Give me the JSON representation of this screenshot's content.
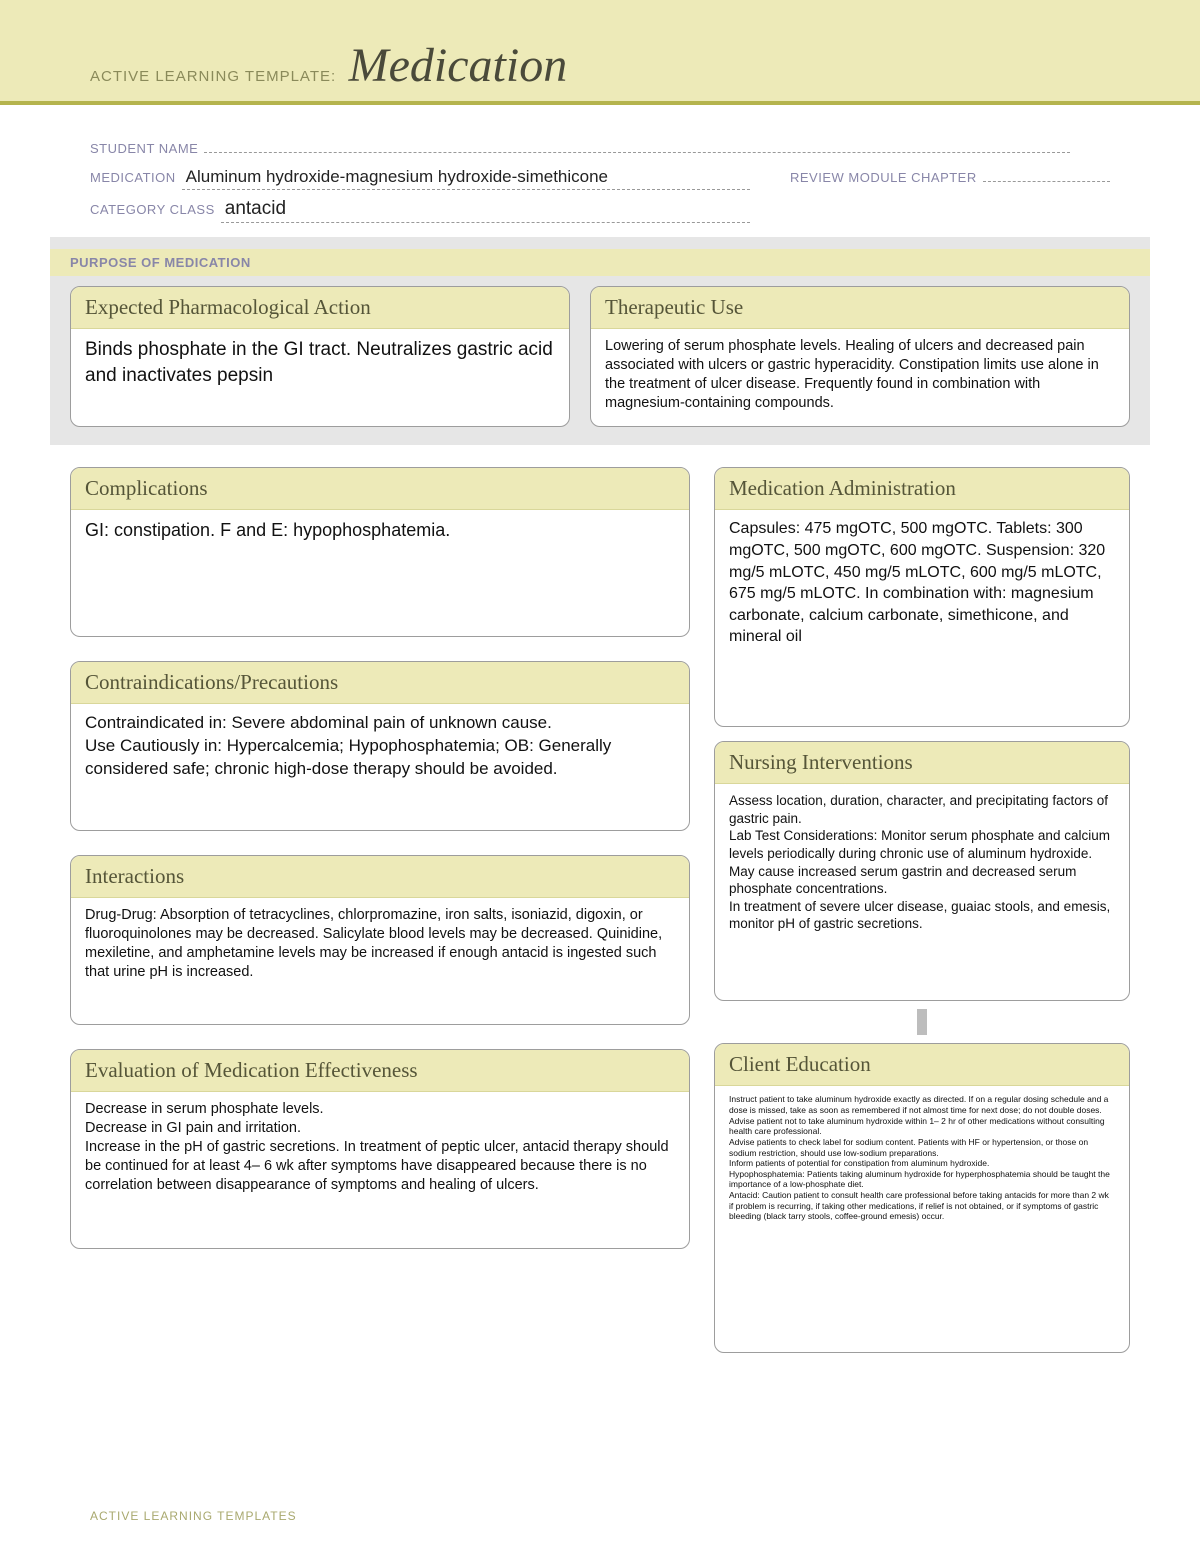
{
  "banner": {
    "label": "ACTIVE LEARNING TEMPLATE:",
    "title": "Medication"
  },
  "meta": {
    "student_name_label": "STUDENT NAME",
    "student_name": "",
    "medication_label": "MEDICATION",
    "medication": "Aluminum hydroxide-magnesium hydroxide-simethicone",
    "review_label": "REVIEW MODULE CHAPTER",
    "review": "",
    "category_label": "CATEGORY CLASS",
    "category": "antacid"
  },
  "purpose": {
    "heading": "PURPOSE OF MEDICATION",
    "pharm": {
      "title": "Expected Pharmacological Action",
      "body": "Binds phosphate in the GI tract. Neutralizes gastric acid and inactivates pepsin"
    },
    "therapeutic": {
      "title": "Therapeutic Use",
      "body": "Lowering of serum phosphate levels. Healing of ulcers and decreased pain associated with ulcers or gastric hyperacidity. Constipation limits use alone in the treatment of ulcer disease. Frequently found in combination with magnesium-containing compounds."
    }
  },
  "left": {
    "complications": {
      "title": "Complications",
      "body": "GI: constipation. F and E: hypophosphatemia."
    },
    "contra": {
      "title": "Contraindications/Precautions",
      "body": "Contraindicated in: Severe abdominal pain of unknown cause.\nUse Cautiously in: Hypercalcemia; Hypophosphatemia; OB: Generally considered safe; chronic high-dose therapy should be avoided."
    },
    "interactions": {
      "title": "Interactions",
      "body": "Drug-Drug: Absorption of tetracyclines, chlorpromazine, iron salts, isoniazid, digoxin, or fluoroquinolones may be decreased. Salicylate blood levels may be decreased. Quinidine, mexiletine, and amphetamine levels may be increased if enough antacid is ingested such that urine pH is increased."
    },
    "evaluation": {
      "title": "Evaluation of Medication Effectiveness",
      "body": "Decrease in serum phosphate levels.\nDecrease in GI pain and irritation.\nIncrease in the pH of gastric secretions. In treatment of peptic ulcer, antacid therapy should be continued for at least 4– 6 wk after symptoms have disappeared because there is no correlation between disappearance of symptoms and healing of ulcers."
    }
  },
  "right": {
    "admin": {
      "title": "Medication Administration",
      "body": "Capsules: 475 mgOTC, 500 mgOTC. Tablets: 300 mgOTC, 500 mgOTC, 600 mgOTC. Suspension: 320 mg/5 mLOTC, 450 mg/5 mLOTC, 600 mg/5 mLOTC, 675 mg/5 mLOTC. In combination with: magnesium carbonate, calcium carbonate, simethicone, and mineral oil"
    },
    "nursing": {
      "title": "Nursing Interventions",
      "body": "Assess location, duration, character, and precipitating factors of gastric pain.\nLab Test Considerations: Monitor serum phosphate and calcium levels periodically during chronic use of aluminum hydroxide.\nMay cause increased serum gastrin and decreased serum phosphate concentrations.\nIn treatment of severe ulcer disease, guaiac stools, and emesis, monitor pH of gastric secretions."
    },
    "client": {
      "title": "Client Education",
      "body": "Instruct patient to take aluminum hydroxide exactly as directed. If on a regular dosing schedule and a dose is missed, take as soon as remembered if not almost time for next dose; do not double doses.\nAdvise patient not to take aluminum hydroxide within 1– 2 hr of other medications without consulting health care professional.\nAdvise patients to check label for sodium content. Patients with HF or hypertension, or those on sodium restriction, should use low-sodium preparations.\nInform patients of potential for constipation from aluminum hydroxide.\nHypophosphatemia: Patients taking aluminum hydroxide for hyperphosphatemia should be taught the importance of a low-phosphate diet.\nAntacid: Caution patient to consult health care professional before taking antacids for more than 2 wk if problem is recurring, if taking other medications, if relief is not obtained, or if symptoms of gastric bleeding (black tarry stools, coffee-ground emesis) occur."
    }
  },
  "footer": "ACTIVE LEARNING TEMPLATES",
  "colors": {
    "band": "#edeab8",
    "band_border": "#b5b44e",
    "box_border": "#9d9d9d",
    "label_purple": "#8886a8",
    "head_text": "#555538"
  }
}
